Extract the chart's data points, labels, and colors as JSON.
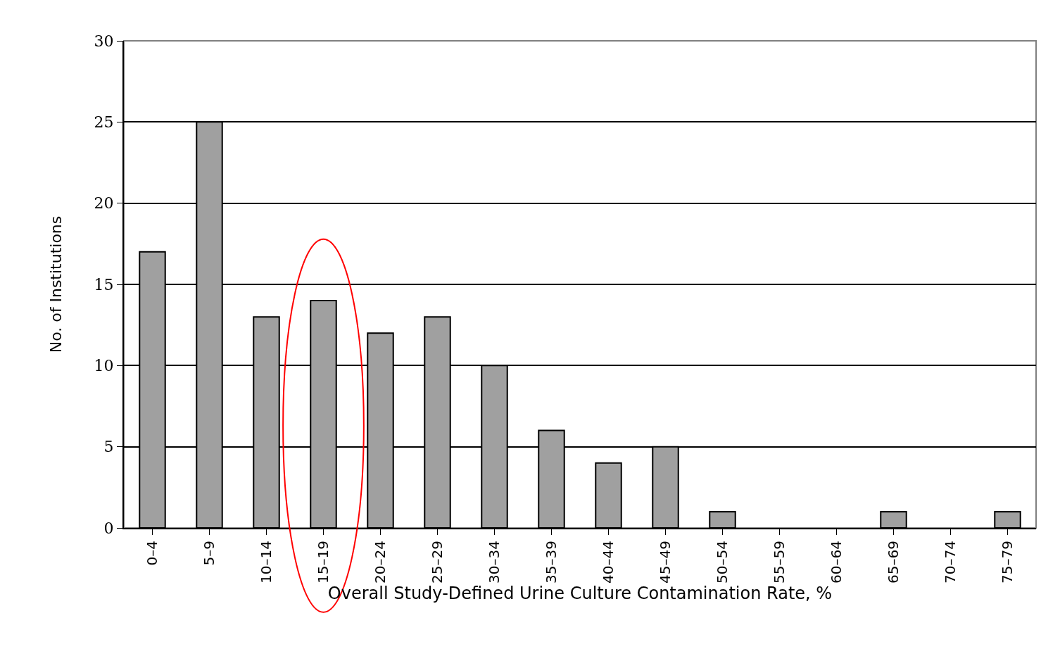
{
  "chart_data": {
    "type": "bar",
    "xlabel": "Overall Study-Defined Urine Culture Contamination Rate, %",
    "ylabel": "No. of Institutions",
    "categories": [
      "0–4",
      "5–9",
      "10–14",
      "15–19",
      "20–24",
      "25–29",
      "30–34",
      "35–39",
      "40–44",
      "45–49",
      "50–54",
      "55–59",
      "60–64",
      "65–69",
      "70–74",
      "75–79"
    ],
    "values": [
      17,
      25,
      13,
      14,
      12,
      13,
      10,
      6,
      4,
      5,
      1,
      0,
      0,
      1,
      0,
      1
    ],
    "color": "#a0a0a0",
    "ylim": [
      0,
      30
    ],
    "yticks": [
      0,
      5,
      10,
      15,
      20,
      25,
      30
    ],
    "grid": "y"
  }
}
